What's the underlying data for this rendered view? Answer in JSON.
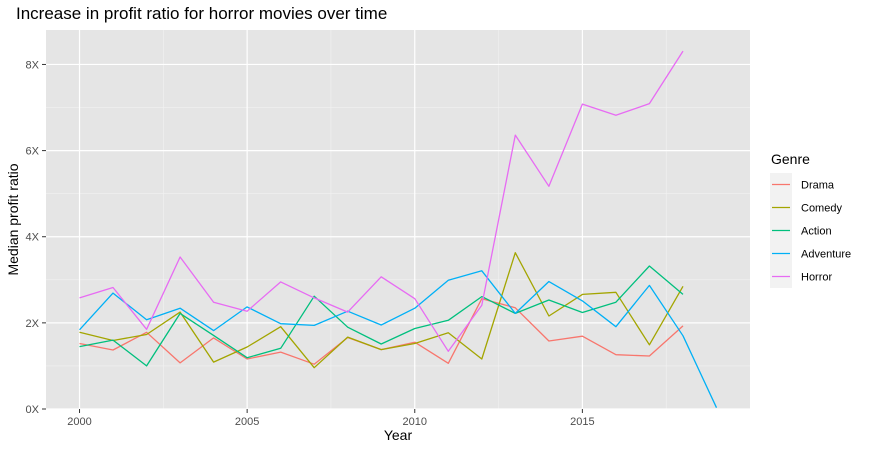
{
  "chart_data": {
    "type": "line",
    "title": "Increase in profit ratio for horror movies over time",
    "xlabel": "Year",
    "ylabel": "Median profit ratio",
    "xlim": [
      1999,
      2020
    ],
    "ylim": [
      0,
      8.8
    ],
    "x_ticks": [
      2000,
      2005,
      2010,
      2015
    ],
    "x_tick_labels": [
      "2000",
      "2005",
      "2010",
      "2015"
    ],
    "y_ticks": [
      0,
      2,
      4,
      6,
      8
    ],
    "y_tick_labels": [
      "0X",
      "2X",
      "4X",
      "6X",
      "8X"
    ],
    "grid": true,
    "background": "#e5e5e5",
    "legend": {
      "title": "Genre",
      "position": "right"
    },
    "series": [
      {
        "name": "Drama",
        "color": "#f8766d",
        "x": [
          2000,
          2001,
          2002,
          2003,
          2004,
          2005,
          2006,
          2007,
          2008,
          2009,
          2010,
          2011,
          2012,
          2013,
          2014,
          2015,
          2016,
          2017,
          2018
        ],
        "values": [
          1.52,
          1.37,
          1.78,
          1.07,
          1.65,
          1.16,
          1.32,
          1.04,
          1.66,
          1.38,
          1.55,
          1.06,
          2.56,
          2.35,
          1.58,
          1.69,
          1.26,
          1.23,
          1.93
        ]
      },
      {
        "name": "Comedy",
        "color": "#a3a500",
        "x": [
          2000,
          2001,
          2002,
          2003,
          2004,
          2005,
          2006,
          2007,
          2008,
          2009,
          2010,
          2011,
          2012,
          2013,
          2014,
          2015,
          2016,
          2017,
          2018
        ],
        "values": [
          1.78,
          1.59,
          1.73,
          2.25,
          1.09,
          1.44,
          1.91,
          0.96,
          1.67,
          1.38,
          1.52,
          1.77,
          1.16,
          3.63,
          2.16,
          2.66,
          2.71,
          1.49,
          2.85
        ]
      },
      {
        "name": "Action",
        "color": "#00bf7d",
        "x": [
          2000,
          2001,
          2002,
          2003,
          2004,
          2005,
          2006,
          2007,
          2008,
          2009,
          2010,
          2011,
          2012,
          2013,
          2014,
          2015,
          2016,
          2017,
          2018
        ],
        "values": [
          1.45,
          1.6,
          1.0,
          2.22,
          1.71,
          1.19,
          1.41,
          2.62,
          1.9,
          1.51,
          1.87,
          2.06,
          2.61,
          2.22,
          2.53,
          2.24,
          2.48,
          3.32,
          2.66
        ]
      },
      {
        "name": "Adventure",
        "color": "#00b0f6",
        "x": [
          2000,
          2001,
          2002,
          2003,
          2004,
          2005,
          2006,
          2007,
          2008,
          2009,
          2010,
          2011,
          2012,
          2013,
          2014,
          2015,
          2016,
          2017,
          2018,
          2019
        ],
        "values": [
          1.84,
          2.69,
          2.07,
          2.34,
          1.82,
          2.37,
          1.98,
          1.94,
          2.27,
          1.95,
          2.34,
          2.99,
          3.21,
          2.22,
          2.96,
          2.51,
          1.91,
          2.87,
          1.7,
          0.03
        ]
      },
      {
        "name": "Horror",
        "color": "#e76bf3",
        "x": [
          2000,
          2001,
          2002,
          2003,
          2004,
          2005,
          2006,
          2007,
          2008,
          2009,
          2010,
          2011,
          2012,
          2013,
          2014,
          2015,
          2016,
          2017,
          2018
        ],
        "values": [
          2.58,
          2.82,
          1.85,
          3.53,
          2.48,
          2.27,
          2.95,
          2.58,
          2.25,
          3.07,
          2.56,
          1.34,
          2.41,
          6.36,
          5.17,
          7.08,
          6.82,
          7.09,
          8.31
        ]
      }
    ]
  }
}
